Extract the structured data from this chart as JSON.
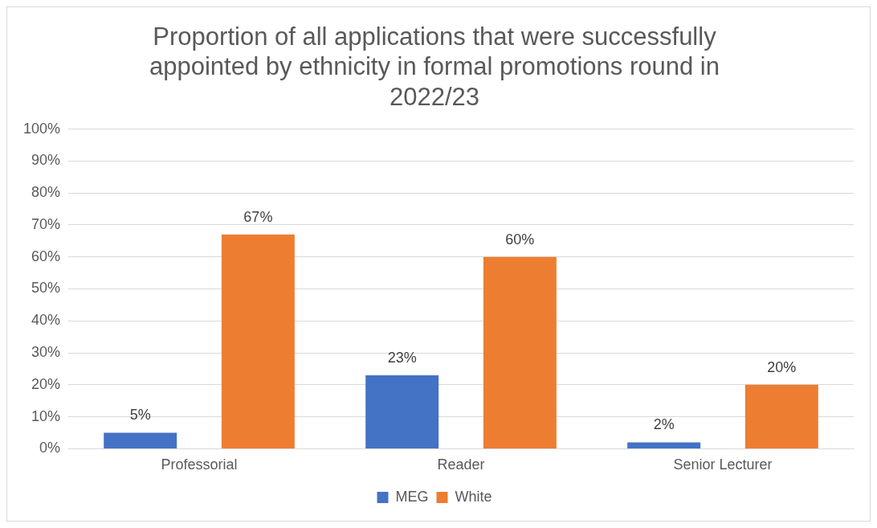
{
  "chart_data": {
    "type": "bar",
    "title": [
      "Proportion of all applications that were successfully",
      "appointed by ethnicity in formal promotions round in",
      "2022/23"
    ],
    "categories": [
      "Professorial",
      "Reader",
      "Senior Lecturer"
    ],
    "series": [
      {
        "name": "MEG",
        "color": "#4472c4",
        "values": [
          5,
          23,
          2
        ],
        "value_labels": [
          "5%",
          "23%",
          "2%"
        ]
      },
      {
        "name": "White",
        "color": "#ed7d31",
        "values": [
          67,
          60,
          20
        ],
        "value_labels": [
          "67%",
          "60%",
          "20%"
        ]
      }
    ],
    "ylim": [
      0,
      100
    ],
    "yticks": [
      {
        "value": 0,
        "label": "0%"
      },
      {
        "value": 10,
        "label": "10%"
      },
      {
        "value": 20,
        "label": "20%"
      },
      {
        "value": 30,
        "label": "30%"
      },
      {
        "value": 40,
        "label": "40%"
      },
      {
        "value": 50,
        "label": "50%"
      },
      {
        "value": 60,
        "label": "60%"
      },
      {
        "value": 70,
        "label": "70%"
      },
      {
        "value": 80,
        "label": "80%"
      },
      {
        "value": 90,
        "label": "90%"
      },
      {
        "value": 100,
        "label": "100%"
      }
    ],
    "grid": "y",
    "legend": "bottom"
  }
}
